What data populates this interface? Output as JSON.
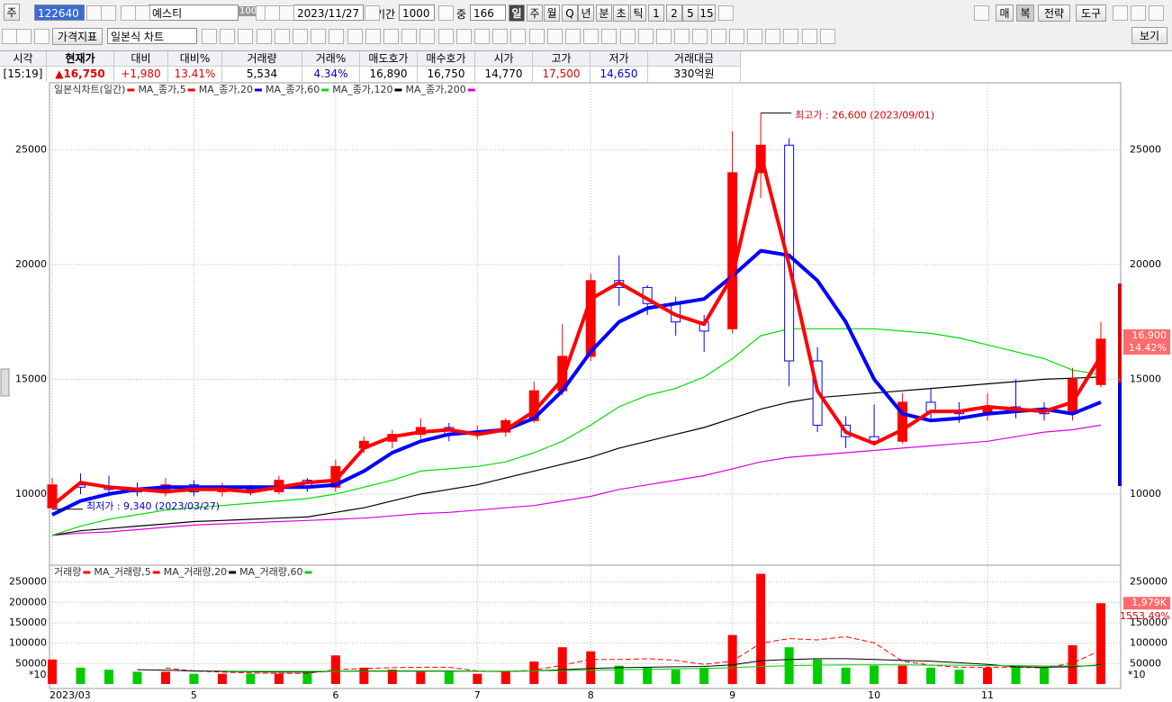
{
  "toolbar": {
    "market": "주",
    "code": "122640",
    "name": "예스티",
    "name_count": "100",
    "date": "2023/11/27",
    "period_label": "기간",
    "period": "1000",
    "middle_label": "중",
    "middle": "166",
    "intervals": [
      "일",
      "주",
      "월",
      "Q",
      "년",
      "분",
      "초",
      "틱",
      "1",
      "2",
      "5",
      "15"
    ],
    "right_buttons": [
      "매",
      "복",
      "전략",
      "도구"
    ],
    "indicator_button": "가격지표",
    "chart_style": "일본식 차트",
    "view_button": "보기"
  },
  "quote_table": {
    "headers": [
      "시각",
      "현재가",
      "대비",
      "대비%",
      "거래량",
      "거래%",
      "매도호가",
      "매수호가",
      "시가",
      "고가",
      "저가",
      "거래대금"
    ],
    "values": [
      "[15:19]",
      "▲16,750",
      "+1,980",
      "13.41%",
      "5,534",
      "4.34%",
      "16,890",
      "16,750",
      "14,770",
      "17,500",
      "14,650",
      "330억원"
    ]
  },
  "chart_data": {
    "type": "candlestick",
    "candle_name": "일본식차트(일간)",
    "up_color": "#ff0000",
    "down_color": "#0000ff",
    "categories": [
      "2023/03",
      null,
      null,
      null,
      null,
      "5",
      null,
      null,
      null,
      null,
      "6",
      null,
      null,
      null,
      null,
      "7",
      null,
      null,
      null,
      "8",
      null,
      null,
      null,
      null,
      "9",
      null,
      null,
      null,
      null,
      "10",
      null,
      null,
      null,
      "11",
      null,
      null,
      null,
      null
    ],
    "ohlc": [
      [
        9400,
        10700,
        9340,
        10400
      ],
      [
        10400,
        10900,
        10000,
        10300
      ],
      [
        10300,
        10800,
        9900,
        10200
      ],
      [
        10200,
        10500,
        9900,
        10100
      ],
      [
        10100,
        10700,
        9900,
        10400
      ],
      [
        10400,
        10600,
        9900,
        10100
      ],
      [
        10100,
        10500,
        9900,
        10200
      ],
      [
        10200,
        10400,
        9950,
        10100
      ],
      [
        10100,
        10800,
        10000,
        10600
      ],
      [
        10600,
        10700,
        10100,
        10300
      ],
      [
        10300,
        11500,
        10100,
        11200
      ],
      [
        12000,
        12500,
        11800,
        12300
      ],
      [
        12300,
        12800,
        12000,
        12600
      ],
      [
        12600,
        13300,
        12400,
        12900
      ],
      [
        12900,
        13100,
        12300,
        12600
      ],
      [
        12600,
        13000,
        12400,
        12700
      ],
      [
        12700,
        13300,
        12500,
        13200
      ],
      [
        13200,
        14900,
        13100,
        14500
      ],
      [
        14500,
        17400,
        14300,
        16000
      ],
      [
        16000,
        19600,
        15800,
        19300
      ],
      [
        19300,
        20400,
        18200,
        19000
      ],
      [
        19000,
        19100,
        17800,
        18300
      ],
      [
        18300,
        18600,
        16900,
        17500
      ],
      [
        17500,
        17800,
        16200,
        17100
      ],
      [
        17200,
        25800,
        17000,
        24000
      ],
      [
        24000,
        26600,
        22900,
        25200
      ],
      [
        25200,
        25500,
        14700,
        15800
      ],
      [
        15800,
        16400,
        12700,
        13000
      ],
      [
        13000,
        13400,
        12000,
        12500
      ],
      [
        12500,
        13900,
        12100,
        12300
      ],
      [
        12300,
        14400,
        12200,
        14000
      ],
      [
        14000,
        14600,
        13300,
        13600
      ],
      [
        13600,
        14000,
        13100,
        13500
      ],
      [
        13500,
        14400,
        13200,
        13800
      ],
      [
        13800,
        15000,
        13300,
        13600
      ],
      [
        13600,
        14000,
        13200,
        13500
      ],
      [
        13500,
        15500,
        13200,
        15000
      ],
      [
        14770,
        17500,
        14650,
        16750
      ]
    ],
    "series": [
      {
        "name": "MA_종가,5",
        "color": "#ff0000",
        "values": [
          9500,
          10500,
          10300,
          10200,
          10100,
          10200,
          10200,
          10100,
          10300,
          10500,
          10600,
          12000,
          12500,
          12700,
          12800,
          12600,
          12800,
          13600,
          15000,
          18500,
          19200,
          18500,
          17800,
          17400,
          19500,
          24800,
          20000,
          14500,
          12700,
          12200,
          12800,
          13600,
          13600,
          13800,
          13700,
          13600,
          14000,
          16000
        ]
      },
      {
        "name": "MA_종가,20",
        "color": "#0000ff",
        "values": [
          9100,
          9700,
          10000,
          10200,
          10300,
          10300,
          10300,
          10300,
          10300,
          10300,
          10400,
          11000,
          11800,
          12300,
          12600,
          12700,
          12800,
          13300,
          14500,
          16200,
          17500,
          18100,
          18300,
          18500,
          19500,
          20600,
          20400,
          19300,
          17500,
          15000,
          13500,
          13200,
          13300,
          13500,
          13600,
          13700,
          13500,
          14000
        ]
      },
      {
        "name": "MA_종가,60",
        "color": "#00dd00",
        "values": [
          8200,
          8600,
          8900,
          9100,
          9300,
          9400,
          9500,
          9600,
          9700,
          9800,
          10000,
          10300,
          10600,
          11000,
          11100,
          11200,
          11400,
          11800,
          12300,
          13000,
          13800,
          14300,
          14600,
          15100,
          15900,
          16900,
          17200,
          17200,
          17200,
          17200,
          17100,
          17000,
          16800,
          16500,
          16200,
          15900,
          15400,
          15200
        ]
      },
      {
        "name": "MA_종가,120",
        "color": "#000000",
        "values": [
          8200,
          8400,
          8500,
          8600,
          8700,
          8800,
          8850,
          8900,
          8950,
          9000,
          9200,
          9400,
          9700,
          10000,
          10200,
          10400,
          10700,
          11000,
          11300,
          11600,
          12000,
          12300,
          12600,
          12900,
          13300,
          13700,
          14000,
          14200,
          14300,
          14400,
          14500,
          14600,
          14700,
          14800,
          14900,
          15000,
          15050,
          15100
        ]
      },
      {
        "name": "MA_종가,200",
        "color": "#dd00dd",
        "values": [
          8200,
          8300,
          8350,
          8450,
          8550,
          8650,
          8700,
          8750,
          8800,
          8850,
          8900,
          8950,
          9050,
          9150,
          9200,
          9300,
          9400,
          9500,
          9700,
          9900,
          10200,
          10400,
          10600,
          10800,
          11100,
          11400,
          11600,
          11700,
          11800,
          11900,
          12000,
          12100,
          12200,
          12300,
          12500,
          12700,
          12800,
          13000
        ]
      }
    ],
    "ylim": [
      6900,
      27800
    ],
    "yticks": [
      10000,
      15000,
      20000,
      25000
    ],
    "grid": true,
    "annotations": [
      {
        "text": "최고가 : 26,600 (2023/09/01)",
        "value": 26600,
        "color": "#e00000"
      },
      {
        "text": "최저가 : 9,340 (2023/03/27)",
        "value": 9340,
        "color": "#0000cc"
      }
    ],
    "ask_tag": {
      "value": 16900,
      "label": "16,900"
    },
    "ask_change": "14.42%",
    "volume": {
      "name": "거래량",
      "up_color": "#ff0000",
      "down_color": "#00cc00",
      "values": [
        60000,
        40000,
        35000,
        30000,
        30000,
        25000,
        25000,
        25000,
        25000,
        30000,
        70000,
        40000,
        35000,
        30000,
        30000,
        25000,
        30000,
        55000,
        90000,
        80000,
        45000,
        40000,
        35000,
        40000,
        120000,
        270000,
        90000,
        60000,
        40000,
        45000,
        45000,
        40000,
        35000,
        40000,
        45000,
        40000,
        95000,
        197900
      ],
      "series": [
        {
          "name": "MA_거래량,5",
          "color": "#ff0000",
          "values": [
            null,
            null,
            null,
            null,
            39000,
            32000,
            29000,
            27000,
            26000,
            26000,
            35000,
            38000,
            40000,
            41000,
            41000,
            32000,
            30000,
            34000,
            46000,
            60000,
            60000,
            62000,
            58000,
            48000,
            56000,
            100000,
            111000,
            108000,
            116000,
            101000,
            56000,
            46000,
            41000,
            41000,
            41000,
            40000,
            51000,
            83000
          ]
        },
        {
          "name": "MA_거래량,20",
          "color": "#000000",
          "values": [
            null,
            null,
            null,
            35000,
            34000,
            32000,
            31000,
            30000,
            29000,
            29000,
            31000,
            32000,
            32000,
            32000,
            32000,
            31000,
            31000,
            32000,
            35000,
            38000,
            40000,
            41000,
            42000,
            43000,
            47000,
            57000,
            60000,
            62000,
            62000,
            60000,
            58000,
            56000,
            52000,
            48000,
            42000,
            41000,
            42000,
            47000
          ]
        },
        {
          "name": "MA_거래량,60",
          "color": "#00cc00",
          "values": [
            null,
            null,
            null,
            null,
            null,
            null,
            32000,
            31000,
            31000,
            31000,
            31000,
            31000,
            31000,
            31000,
            31000,
            31000,
            31000,
            32000,
            33000,
            34000,
            35000,
            36000,
            37000,
            38000,
            40000,
            43000,
            45000,
            46000,
            47000,
            47000,
            47000,
            46000,
            46000,
            45000,
            45000,
            44000,
            44000,
            45000
          ]
        }
      ],
      "ylim": [
        0,
        291000
      ],
      "yticks": [
        50000,
        100000,
        150000,
        200000,
        250000
      ],
      "unit": "*10",
      "tag": "1,979K",
      "tag_change": "1553.49%"
    }
  }
}
